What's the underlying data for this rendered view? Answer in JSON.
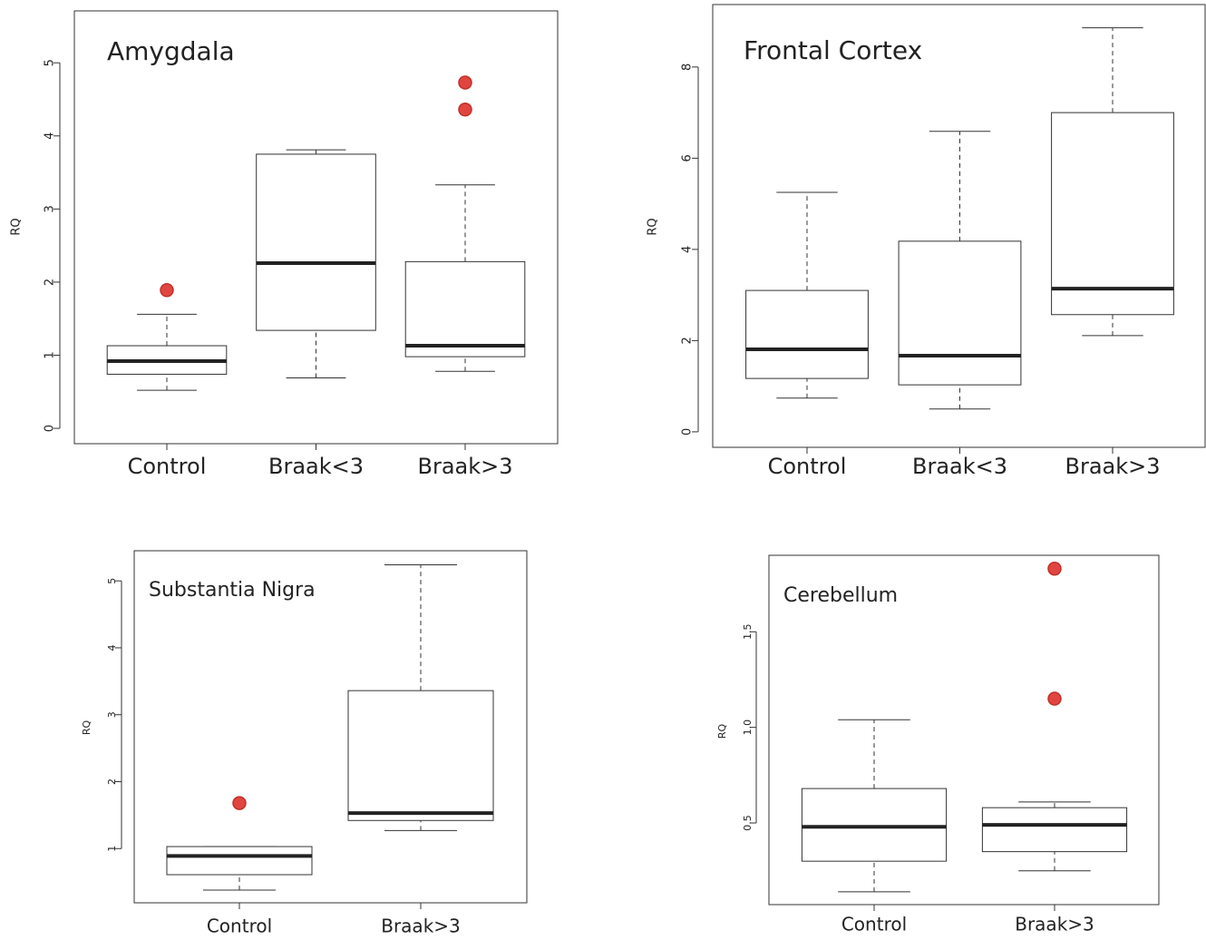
{
  "chart_data": [
    {
      "type": "box",
      "title": "Amygdala",
      "ylabel": "RQ",
      "categories": [
        "Control",
        "Braak<3",
        "Braak>3"
      ],
      "boxes": [
        {
          "whislo": 0.52,
          "q1": 0.74,
          "med": 0.92,
          "q3": 1.13,
          "whishi": 1.56,
          "fliers": [
            1.89
          ]
        },
        {
          "whislo": 0.69,
          "q1": 1.34,
          "med": 2.26,
          "q3": 3.75,
          "whishi": 3.81
        },
        {
          "whislo": 0.78,
          "q1": 0.98,
          "med": 1.13,
          "q3": 2.28,
          "whishi": 3.33,
          "fliers": [
            4.36,
            4.73
          ]
        }
      ],
      "ylim": [
        -0.21,
        5.71
      ],
      "yticks": [
        0,
        1,
        2,
        3,
        4,
        5
      ],
      "flier_color": "#e0463f"
    },
    {
      "type": "box",
      "title": "Frontal Cortex",
      "ylabel": "RQ",
      "categories": [
        "Control",
        "Braak<3",
        "Braak>3"
      ],
      "boxes": [
        {
          "whislo": 0.74,
          "q1": 1.17,
          "med": 1.81,
          "q3": 3.1,
          "whishi": 5.25
        },
        {
          "whislo": 0.5,
          "q1": 1.03,
          "med": 1.67,
          "q3": 4.18,
          "whishi": 6.59
        },
        {
          "whislo": 2.11,
          "q1": 2.57,
          "med": 3.14,
          "q3": 7.0,
          "whishi": 8.86
        }
      ],
      "ylim": [
        -0.34,
        9.37
      ],
      "yticks": [
        0,
        2,
        4,
        6,
        8
      ],
      "flier_color": "#e0463f"
    },
    {
      "type": "box",
      "title": "Substantia Nigra",
      "ylabel": "RQ",
      "categories": [
        "Control",
        "Braak>3"
      ],
      "boxes": [
        {
          "whislo": 0.38,
          "q1": 0.61,
          "med": 0.89,
          "q3": 1.03,
          "whishi": 1.03,
          "fliers": [
            1.68
          ]
        },
        {
          "whislo": 1.27,
          "q1": 1.42,
          "med": 1.53,
          "q3": 3.36,
          "whishi": 5.24
        }
      ],
      "ylim": [
        0.19,
        5.45
      ],
      "yticks": [
        1,
        2,
        3,
        4,
        5
      ],
      "flier_color": "#e0463f"
    },
    {
      "type": "box",
      "title": "Cerebellum",
      "ylabel": "RQ",
      "categories": [
        "Control",
        "Braak>3"
      ],
      "boxes": [
        {
          "whislo": 0.14,
          "q1": 0.3,
          "med": 0.48,
          "q3": 0.68,
          "whishi": 1.04
        },
        {
          "whislo": 0.25,
          "q1": 0.35,
          "med": 0.49,
          "q3": 0.58,
          "whishi": 0.61,
          "fliers": [
            1.15,
            1.83
          ]
        }
      ],
      "ylim": [
        0.073,
        1.9
      ],
      "yticks": [
        0.5,
        {
          "value": 1,
          "label": "1.0"
        },
        1.5
      ],
      "flier_color": "#e0463f"
    }
  ]
}
